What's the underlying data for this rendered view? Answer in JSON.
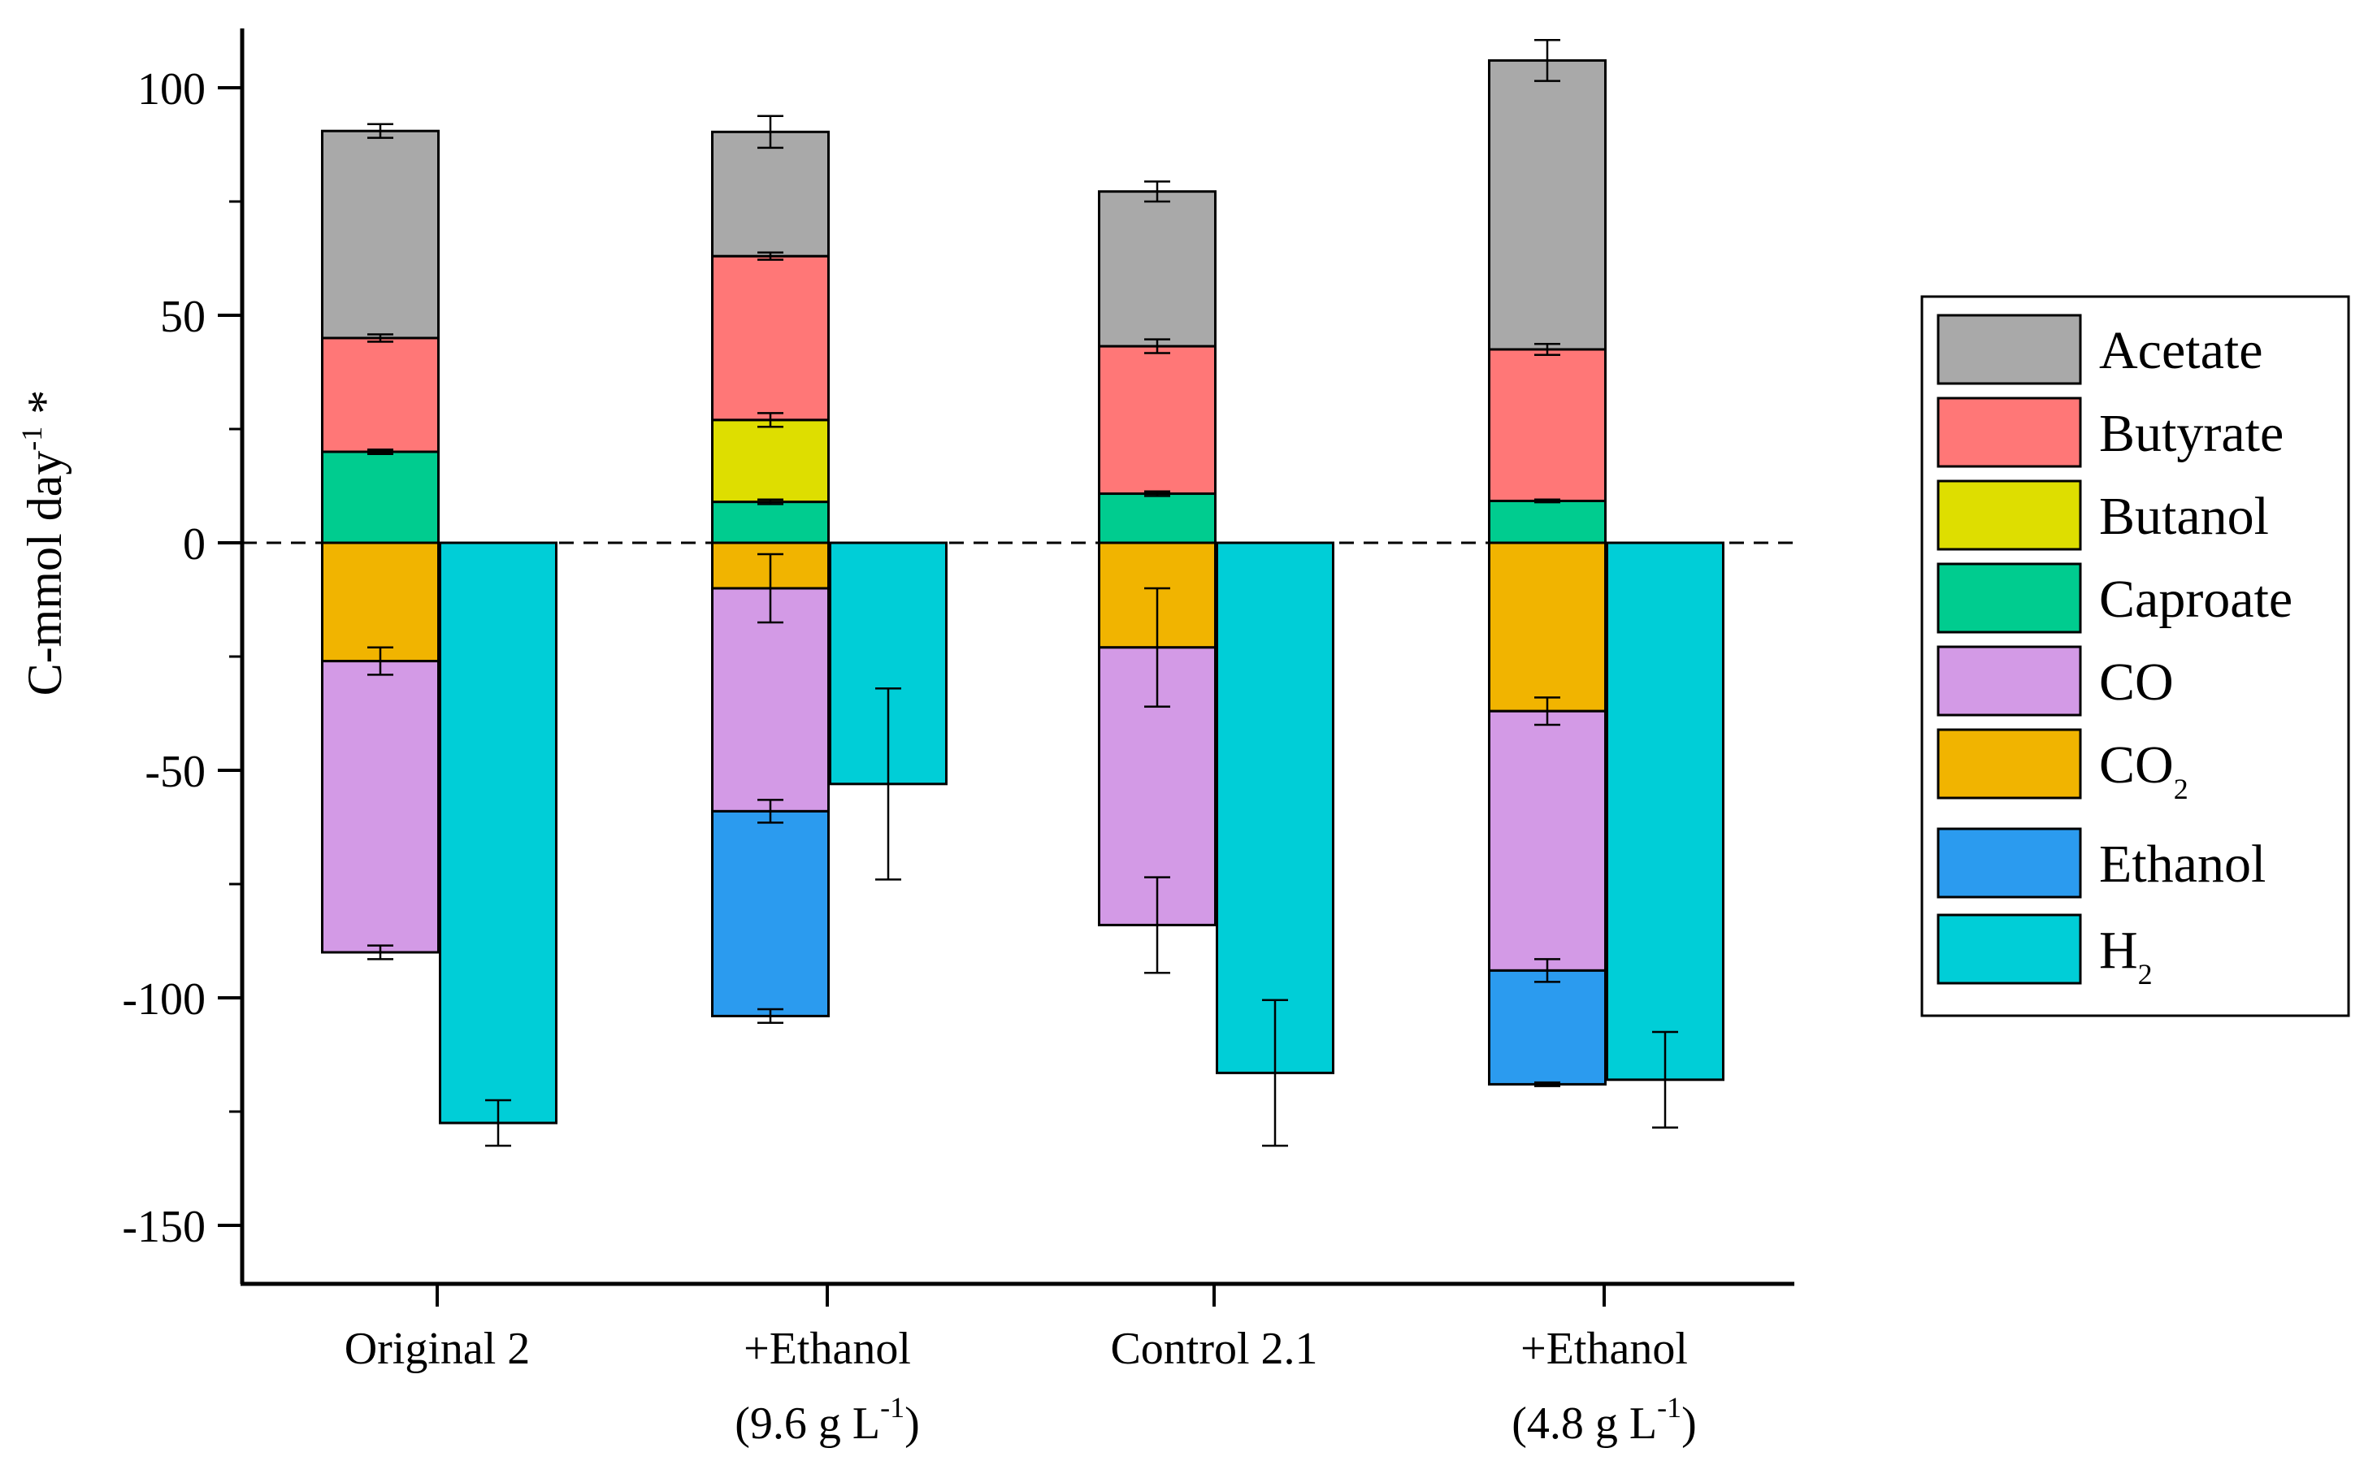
{
  "chart_data": {
    "type": "bar",
    "stacking": "stacked",
    "ylabel": "C-mmol day",
    "ylabel_sup": "-1",
    "ylabel_suffix": " *",
    "ylim": [
      -162,
      112
    ],
    "yticks": [
      -150,
      -100,
      -50,
      0,
      50,
      100
    ],
    "zero_line": "dashed",
    "categories": [
      {
        "id": "orig",
        "line1": "Original 2",
        "line2": "",
        "line2_pre": "",
        "line2_sup": "",
        "line2_post": ""
      },
      {
        "id": "eth96",
        "line1": "+Ethanol",
        "line2": "(9.6 g L",
        "line2_pre": "(9.6 g L",
        "line2_sup": "-1",
        "line2_post": ")"
      },
      {
        "id": "ctrl",
        "line1": "Control 2.1",
        "line2": "",
        "line2_pre": "",
        "line2_sup": "",
        "line2_post": ""
      },
      {
        "id": "eth48",
        "line1": "+Ethanol",
        "line2": "(4.8 g L",
        "line2_pre": "(4.8 g L",
        "line2_sup": "-1",
        "line2_post": ")"
      }
    ],
    "series": [
      {
        "name": "Acetate",
        "sub": "",
        "color": "#A9A9A9"
      },
      {
        "name": "Butyrate",
        "sub": "",
        "color": "#FF7777"
      },
      {
        "name": "Butanol",
        "sub": "",
        "color": "#DEDE00"
      },
      {
        "name": "Caproate",
        "sub": "",
        "color": "#00CC8F"
      },
      {
        "name": "CO",
        "sub": "",
        "color": "#D39AE6"
      },
      {
        "name": "CO",
        "sub": "2",
        "color": "#F1B400"
      },
      {
        "name": "Ethanol",
        "sub": "",
        "color": "#2B9BEF"
      },
      {
        "name": "H",
        "sub": "2",
        "color": "#00CED7"
      }
    ],
    "stacks": [
      {
        "category": 0,
        "position": "left",
        "segments": [
          {
            "series": 3,
            "base": 0,
            "top": 20,
            "err": 0.5
          },
          {
            "series": 1,
            "base": 20,
            "top": 45,
            "err": 0.8
          },
          {
            "series": 0,
            "base": 45,
            "top": 90.5,
            "err": 1.5
          },
          {
            "series": 5,
            "base": 0,
            "top": -26,
            "err": 3
          },
          {
            "series": 4,
            "base": -26,
            "top": -90,
            "err": 1.5
          }
        ]
      },
      {
        "category": 0,
        "position": "right",
        "segments": [
          {
            "series": 7,
            "base": 0,
            "top": -127.5,
            "err": 5
          }
        ]
      },
      {
        "category": 1,
        "position": "left",
        "segments": [
          {
            "series": 3,
            "base": 0,
            "top": 9,
            "err": 0.5
          },
          {
            "series": 2,
            "base": 9,
            "top": 27,
            "err": 1.5
          },
          {
            "series": 1,
            "base": 27,
            "top": 63,
            "err": 0.8
          },
          {
            "series": 0,
            "base": 63,
            "top": 90.3,
            "err": 3.5
          },
          {
            "series": 5,
            "base": 0,
            "top": -10,
            "err": 7.5
          },
          {
            "series": 4,
            "base": -10,
            "top": -59,
            "err": 2.5
          },
          {
            "series": 6,
            "base": -59,
            "top": -104,
            "err": 1.5
          }
        ]
      },
      {
        "category": 1,
        "position": "right",
        "segments": [
          {
            "series": 7,
            "base": 0,
            "top": -53,
            "err": 21
          }
        ]
      },
      {
        "category": 2,
        "position": "left",
        "segments": [
          {
            "series": 3,
            "base": 0,
            "top": 10.8,
            "err": 0.5
          },
          {
            "series": 1,
            "base": 10.8,
            "top": 43.2,
            "err": 1.5
          },
          {
            "series": 0,
            "base": 43.2,
            "top": 77.2,
            "err": 2.2
          },
          {
            "series": 5,
            "base": 0,
            "top": -23,
            "err": 13
          },
          {
            "series": 4,
            "base": -23,
            "top": -84,
            "err": 10.5
          }
        ]
      },
      {
        "category": 2,
        "position": "right",
        "segments": [
          {
            "series": 7,
            "base": 0,
            "top": -116.5,
            "err": 16
          }
        ]
      },
      {
        "category": 3,
        "position": "left",
        "segments": [
          {
            "series": 3,
            "base": 0,
            "top": 9.2,
            "err": 0.3
          },
          {
            "series": 1,
            "base": 9.2,
            "top": 42.5,
            "err": 1.2
          },
          {
            "series": 0,
            "base": 42.5,
            "top": 106,
            "err": 4.5
          },
          {
            "series": 5,
            "base": 0,
            "top": -37,
            "err": 3
          },
          {
            "series": 4,
            "base": -37,
            "top": -94,
            "err": 2.5
          },
          {
            "series": 6,
            "base": -94,
            "top": -119,
            "err": 0.4
          }
        ]
      },
      {
        "category": 3,
        "position": "right",
        "segments": [
          {
            "series": 7,
            "base": 0,
            "top": -118,
            "err": 10.5
          }
        ]
      }
    ]
  }
}
